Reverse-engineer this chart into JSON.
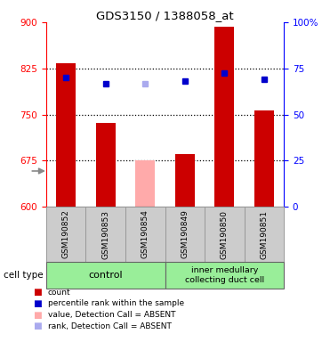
{
  "title": "GDS3150 / 1388058_at",
  "samples": [
    "GSM190852",
    "GSM190853",
    "GSM190854",
    "GSM190849",
    "GSM190850",
    "GSM190851"
  ],
  "bar_values": [
    833,
    737,
    676,
    686,
    893,
    756
  ],
  "bar_absent": [
    false,
    false,
    true,
    false,
    false,
    false
  ],
  "percentile_values": [
    810,
    800,
    800,
    805,
    817,
    808
  ],
  "percentile_absent": [
    false,
    false,
    true,
    false,
    false,
    false
  ],
  "bar_color_normal": "#cc0000",
  "bar_color_absent": "#ffaaaa",
  "percentile_color_normal": "#0000cc",
  "percentile_color_absent": "#aaaaee",
  "ylim_left": [
    600,
    900
  ],
  "ylim_right": [
    0,
    100
  ],
  "yticks_left": [
    600,
    675,
    750,
    825,
    900
  ],
  "yticks_right": [
    0,
    25,
    50,
    75,
    100
  ],
  "ytick_labels_right": [
    "0",
    "25",
    "50",
    "75",
    "100%"
  ],
  "bar_width": 0.5,
  "cell_type_label": "cell type",
  "group1_label": "control",
  "group2_label": "inner medullary\ncollecting duct cell",
  "group_color": "#99ee99",
  "sample_box_color": "#cccccc",
  "sample_box_edge": "#999999",
  "legend_labels": [
    "count",
    "percentile rank within the sample",
    "value, Detection Call = ABSENT",
    "rank, Detection Call = ABSENT"
  ],
  "legend_colors": [
    "#cc0000",
    "#0000cc",
    "#ffaaaa",
    "#aaaaee"
  ],
  "background_color": "#ffffff"
}
